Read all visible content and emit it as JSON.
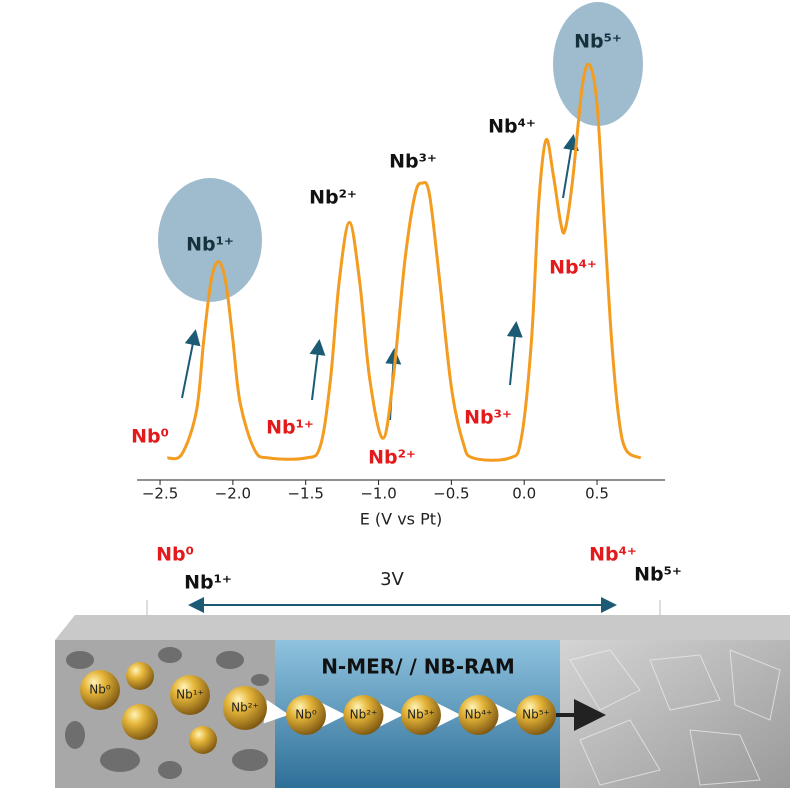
{
  "chart_data": {
    "type": "line",
    "xlabel": "E (V vs Pt)",
    "xlim": [
      -2.65,
      0.97
    ],
    "ylim": [
      -0.056,
      1.1
    ],
    "xticks": [
      {
        "value": -2.5,
        "label": "−2.5"
      },
      {
        "value": -2.0,
        "label": "−2.0"
      },
      {
        "value": -1.5,
        "label": "−1.5"
      },
      {
        "value": -1.0,
        "label": "−1.0"
      },
      {
        "value": -0.5,
        "label": "−0.5"
      },
      {
        "value": 0.0,
        "label": "0.0"
      },
      0.5
    ],
    "series": [
      {
        "color": "#f39c1f",
        "x": [
          -2.45,
          -2.35,
          -2.25,
          -2.2,
          -2.15,
          -2.1,
          -2.05,
          -2.0,
          -1.95,
          -1.85,
          -1.75,
          -1.5,
          -1.4,
          -1.33,
          -1.27,
          -1.2,
          -1.13,
          -1.06,
          -0.97,
          -0.9,
          -0.82,
          -0.75,
          -0.7,
          -0.65,
          -0.58,
          -0.5,
          -0.42,
          -0.35,
          -0.1,
          -0.02,
          0.05,
          0.1,
          0.15,
          0.2,
          0.25,
          0.28,
          0.33,
          0.4,
          0.45,
          0.5,
          0.55,
          0.6,
          0.65,
          0.7,
          0.8
        ],
        "values": [
          0,
          0.01,
          0.12,
          0.3,
          0.45,
          0.5,
          0.45,
          0.3,
          0.14,
          0.02,
          0,
          0,
          0.03,
          0.2,
          0.45,
          0.6,
          0.45,
          0.2,
          0.05,
          0.2,
          0.5,
          0.67,
          0.7,
          0.67,
          0.45,
          0.18,
          0.04,
          0,
          0,
          0.05,
          0.3,
          0.65,
          0.81,
          0.72,
          0.6,
          0.58,
          0.7,
          0.95,
          1.0,
          0.9,
          0.6,
          0.3,
          0.1,
          0.02,
          0
        ]
      }
    ],
    "annotations": [
      {
        "text": "Nb¹⁺",
        "color": "#17303d"
      },
      {
        "text": "Nb²⁺",
        "color": "#111111"
      },
      {
        "text": "Nb³⁺",
        "color": "#111111"
      },
      {
        "text": "Nb⁴⁺",
        "color": "#111111"
      },
      {
        "text": "Nb⁵⁺",
        "color": "#17303d"
      },
      {
        "text": "Nb⁰",
        "color": "#e3191c"
      },
      {
        "text": "Nb¹⁺",
        "color": "#e3191c"
      },
      {
        "text": "Nb²⁺",
        "color": "#e3191c"
      },
      {
        "text": "Nb³⁺",
        "color": "#e3191c"
      },
      {
        "text": "Nb⁴⁺",
        "color": "#e3191c"
      }
    ]
  },
  "diagram": {
    "labels": [
      {
        "text": "Nb⁰",
        "color": "#e3191c"
      },
      {
        "text": "Nb¹⁺",
        "color": "#111111"
      },
      {
        "text": "3V",
        "color": "#222222"
      },
      {
        "text": "Nb⁴⁺",
        "color": "#e3191c"
      },
      {
        "text": "Nb⁵⁺",
        "color": "#111111"
      }
    ],
    "title": "N-MER/ / NB-RAM",
    "balls": [
      "Nb⁰",
      "Nb¹⁺",
      "Nb²⁺"
    ],
    "chain": [
      "Nb⁰",
      "Nb²⁺",
      "Nb³⁺",
      "Nb⁴⁺",
      "Nb⁵⁺"
    ]
  }
}
